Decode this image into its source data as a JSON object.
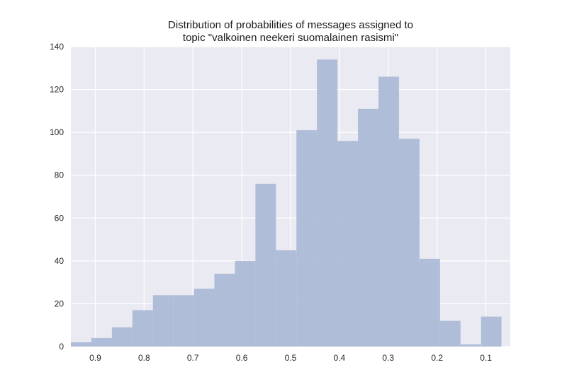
{
  "chart_data": {
    "type": "bar",
    "title_lines": [
      "Distribution of probabilities of messages assigned to",
      "topic \"valkoinen neekeri suomalainen rasismi\""
    ],
    "xlabel": "",
    "ylabel": "",
    "x_reversed": true,
    "xlim": [
      0.95,
      0.05
    ],
    "ylim": [
      0,
      140
    ],
    "xticks": [
      0.9,
      0.8,
      0.7,
      0.6,
      0.5,
      0.4,
      0.3,
      0.2,
      0.1
    ],
    "xtick_labels": [
      "0.9",
      "0.8",
      "0.7",
      "0.6",
      "0.5",
      "0.4",
      "0.3",
      "0.2",
      "0.1"
    ],
    "yticks": [
      0,
      20,
      40,
      60,
      80,
      100,
      120,
      140
    ],
    "ytick_labels": [
      "0",
      "20",
      "40",
      "60",
      "80",
      "100",
      "120",
      "140"
    ],
    "bin_edges": [
      0.95,
      0.908,
      0.866,
      0.824,
      0.782,
      0.74,
      0.698,
      0.656,
      0.614,
      0.572,
      0.53,
      0.488,
      0.446,
      0.404,
      0.362,
      0.32,
      0.278,
      0.236,
      0.194,
      0.152,
      0.11,
      0.068
    ],
    "values": [
      2,
      4,
      9,
      17,
      24,
      24,
      27,
      34,
      40,
      76,
      45,
      101,
      134,
      96,
      111,
      126,
      97,
      41,
      12,
      1,
      14
    ],
    "grid": true,
    "colors": {
      "background": "#eaeaf2",
      "bar": "#a9b8d6",
      "grid": "#ffffff"
    }
  }
}
